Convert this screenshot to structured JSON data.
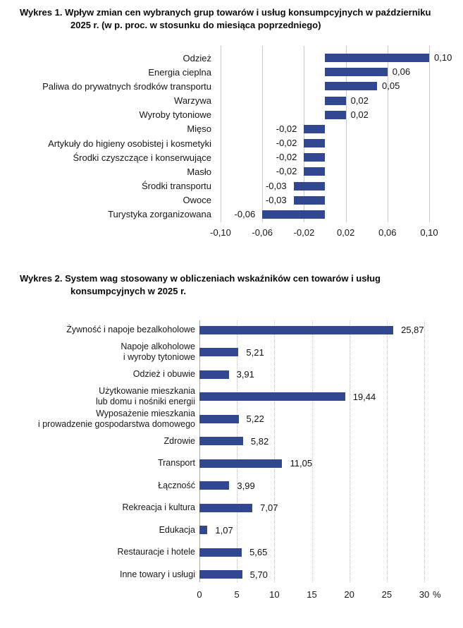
{
  "page": {
    "background": "#ffffff"
  },
  "chart_data": [
    {
      "type": "bar",
      "orientation": "horizontal",
      "title": "Wykres 1. Wpływ zmian cen wybranych grup towarów i usług konsumpcyjnych w październiku 2025 r. (w p. proc. w stosunku do miesiąca poprzedniego)",
      "title_line1": "Wykres 1. Wpływ zmian cen wybranych grup towarów i usług konsumpcyjnych w październiku",
      "title_line2": "2025 r. (w p. proc. w stosunku do miesiąca poprzedniego)",
      "categories": [
        "Odzież",
        "Energia cieplna",
        "Paliwa do prywatnych środków transportu",
        "Warzywa",
        "Wyroby tytoniowe",
        "Mięso",
        "Artykuły do higieny osobistej i kosmetyki",
        "Środki czyszczące i konserwujące",
        "Masło",
        "Środki transportu",
        "Owoce",
        "Turystyka zorganizowana"
      ],
      "values": [
        0.1,
        0.06,
        0.05,
        0.02,
        0.02,
        -0.02,
        -0.02,
        -0.02,
        -0.02,
        -0.03,
        -0.03,
        -0.06
      ],
      "value_labels": [
        "0,10",
        "0,06",
        "0,05",
        "0,02",
        "0,02",
        "-0,02",
        "-0,02",
        "-0,02",
        "-0,02",
        "-0,03",
        "-0,03",
        "-0,06"
      ],
      "xlim": [
        -0.1,
        0.1
      ],
      "xtick_values": [
        -0.1,
        -0.06,
        -0.02,
        0.02,
        0.06,
        0.1
      ],
      "xtick_labels": [
        "-0,10",
        "-0,06",
        "-0,02",
        "0,02",
        "0,06",
        "0,10"
      ],
      "unit": "",
      "grid": "solid-vertical",
      "legend": "none",
      "bar_color": "#31478F",
      "grid_color": "#c9c9c9"
    },
    {
      "type": "bar",
      "orientation": "horizontal",
      "title": "Wykres 2. System wag stosowany w obliczeniach wskaźników cen towarów i usług konsumpcyjnych w 2025 r.",
      "title_line1": "Wykres 2. System wag stosowany w obliczeniach wskaźników cen towarów i usług",
      "title_line2": "konsumpcyjnych w 2025 r.",
      "categories": [
        "Żywność i napoje bezalkoholowe",
        "Napoje alkoholowe\ni wyroby tytoniowe",
        "Odzież i obuwie",
        "Użytkowanie mieszkania\nlub domu i nośniki energii",
        "Wyposażenie mieszkania\ni prowadzenie gospodarstwa domowego",
        "Zdrowie",
        "Transport",
        "Łączność",
        "Rekreacja i kultura",
        "Edukacja",
        "Restauracje i hotele",
        "Inne towary i usługi"
      ],
      "values": [
        25.87,
        5.21,
        3.91,
        19.44,
        5.22,
        5.82,
        11.05,
        3.99,
        7.07,
        1.07,
        5.65,
        5.7
      ],
      "value_labels": [
        "25,87",
        "5,21",
        "3,91",
        "19,44",
        "5,22",
        "5,82",
        "11,05",
        "3,99",
        "7,07",
        "1,07",
        "5,65",
        "5,70"
      ],
      "xlim": [
        0,
        30
      ],
      "xtick_values": [
        0,
        5,
        10,
        15,
        20,
        25,
        30
      ],
      "xtick_labels": [
        "0",
        "5",
        "10",
        "15",
        "20",
        "25",
        "30"
      ],
      "unit": "%",
      "grid": "dotted-vertical",
      "legend": "none",
      "bar_color": "#31478F",
      "grid_color": "#c4c4c4",
      "axis_color": "#a8a8a8"
    }
  ]
}
